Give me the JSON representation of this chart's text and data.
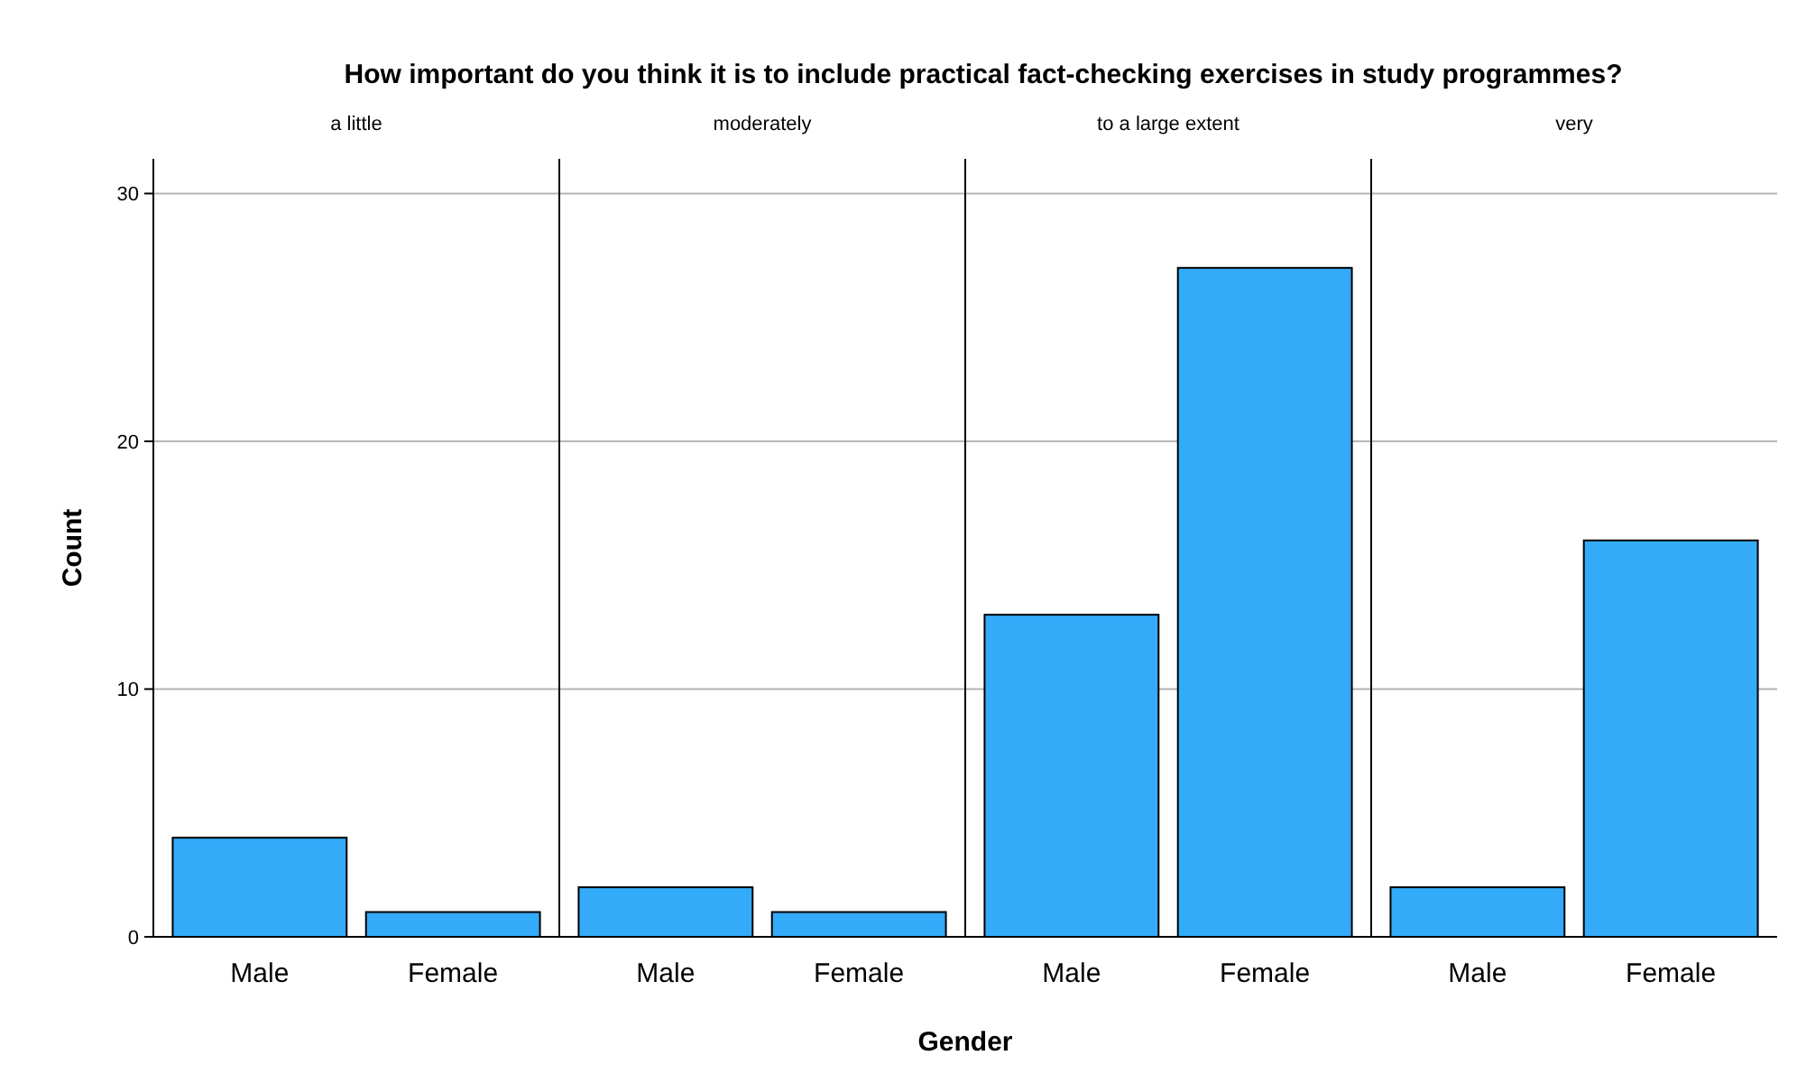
{
  "chart_data": [
    {
      "type": "bar",
      "title": "How important do you think it is to include practical fact-checking exercises in study programmes?",
      "subtitle": "a little",
      "ylabel": "Count",
      "categories": [
        "Male",
        "Female"
      ],
      "values": [
        4,
        1
      ],
      "color": "#33abf9",
      "ylim": [
        0,
        31.4
      ],
      "yticks": [
        0,
        10,
        20,
        30
      ],
      "grid": "y"
    },
    {
      "type": "bar",
      "subtitle": "moderately",
      "xlabel": "Gender",
      "categories": [
        "Male",
        "Female"
      ],
      "values": [
        2,
        1
      ],
      "color": "#33abf9",
      "ylim": [
        0,
        31.4
      ],
      "yticks": [
        0,
        10,
        20,
        30
      ],
      "grid": "y",
      "tick_labels": "x"
    },
    {
      "type": "bar",
      "subtitle": "to a large extent",
      "categories": [
        "Male",
        "Female"
      ],
      "values": [
        13,
        27
      ],
      "color": "#33abf9",
      "ylim": [
        0,
        31.4
      ],
      "yticks": [
        0,
        10,
        20,
        30
      ],
      "grid": "y",
      "tick_labels": "x"
    },
    {
      "type": "bar",
      "subtitle": "very",
      "categories": [
        "Male",
        "Female"
      ],
      "values": [
        2,
        16
      ],
      "color": "#33abf9",
      "ylim": [
        0,
        31.4
      ],
      "yticks": [
        0,
        10,
        20,
        30
      ],
      "grid": "y",
      "tick_labels": "x"
    }
  ]
}
